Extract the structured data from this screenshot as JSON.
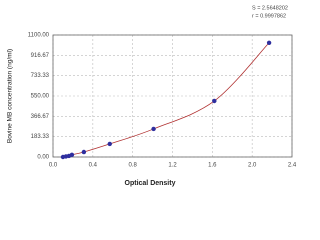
{
  "chart_data": {
    "type": "scatter",
    "x_label": "Optical Density",
    "y_label": "Bovine MB concentration (ng/ml)",
    "annotations": [
      "S = 2.5648202",
      "r = 0.9997862"
    ],
    "x": [
      0.1,
      0.13,
      0.16,
      0.19,
      0.31,
      0.57,
      1.01,
      1.62,
      2.17
    ],
    "values": [
      0,
      5,
      10,
      20,
      45,
      118,
      253,
      505,
      1030
    ],
    "color": "#2e2e9e",
    "curve_color": "#b03030",
    "xlim": [
      0,
      2.4
    ],
    "xticks": [
      {
        "value": 0,
        "label": "0.0"
      },
      0.4,
      0.8,
      1.2,
      1.6,
      {
        "value": 2,
        "label": "2.0"
      },
      2.4
    ],
    "ylim": [
      0,
      1100
    ],
    "yticks": [
      {
        "value": 0,
        "label": "0.00"
      },
      {
        "value": 183.33,
        "label": "183.33"
      },
      {
        "value": 366.67,
        "label": "366.67"
      },
      {
        "value": 550,
        "label": "550.00"
      },
      {
        "value": 733.33,
        "label": "733.33"
      },
      {
        "value": 916.67,
        "label": "916.67"
      },
      {
        "value": 1100,
        "label": "1100.00"
      }
    ],
    "grid": true
  }
}
